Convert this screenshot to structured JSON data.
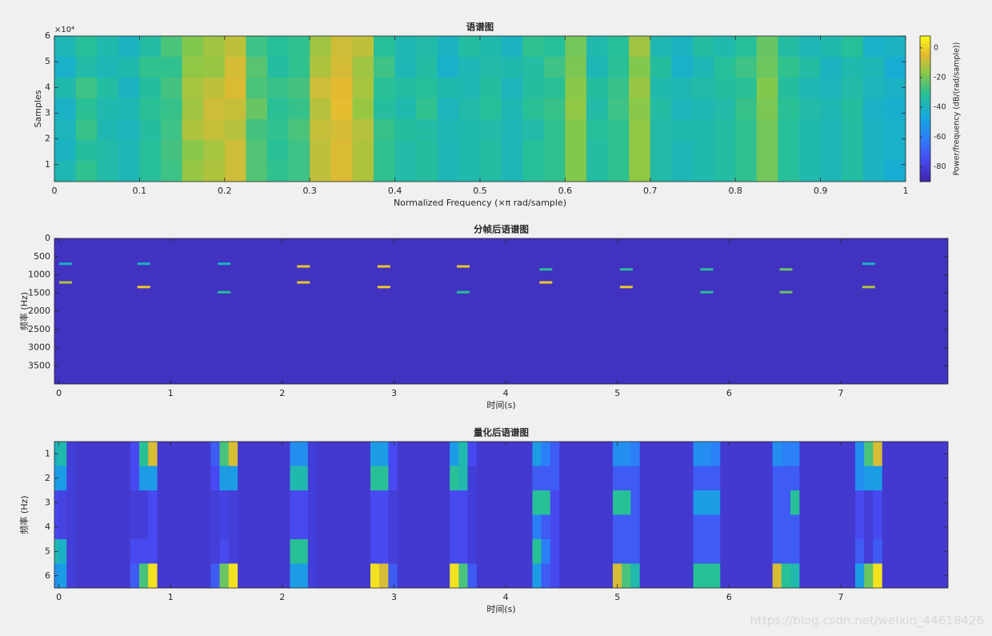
{
  "chart_data": [
    {
      "type": "heatmap",
      "title": "语谱图",
      "xlabel": "Normalized Frequency  (×π rad/sample)",
      "ylabel": "Samples",
      "xlim": [
        0,
        1
      ],
      "xticks": [
        0,
        0.1,
        0.2,
        0.3,
        0.4,
        0.5,
        0.6,
        0.7,
        0.8,
        0.9,
        1
      ],
      "ylim": [
        3400,
        60000
      ],
      "yticks": [
        {
          "value": 10000,
          "label": "1"
        },
        {
          "value": 20000,
          "label": "2"
        },
        {
          "value": 30000,
          "label": "3"
        },
        {
          "value": 40000,
          "label": "4"
        },
        {
          "value": 50000,
          "label": "5"
        },
        {
          "value": 60000,
          "label": "6"
        }
      ],
      "y_multiplier_label": "×10⁴",
      "colormap": "parula",
      "clim": [
        -90,
        8
      ],
      "colorbar": {
        "label": "Power/frequency (dB/(rad/sample))",
        "ticks": [
          0,
          -20,
          -40,
          -60,
          -80
        ]
      },
      "z": [
        [
          -38,
          -32,
          -36,
          -40,
          -34,
          -26,
          -18,
          -14,
          -10,
          -28,
          -32,
          -30,
          -14,
          -8,
          -10,
          -32,
          -37,
          -35,
          -40,
          -34,
          -36,
          -40,
          -30,
          -32,
          -20,
          -36,
          -32,
          -14,
          -37,
          -40,
          -34,
          -36,
          -32,
          -22,
          -34,
          -38,
          -36,
          -32,
          -42,
          -40
        ],
        [
          -42,
          -35,
          -38,
          -36,
          -30,
          -30,
          -16,
          -15,
          -7,
          -24,
          -34,
          -30,
          -12,
          -7,
          -14,
          -28,
          -38,
          -34,
          -42,
          -38,
          -35,
          -36,
          -34,
          -28,
          -19,
          -38,
          -31,
          -18,
          -33,
          -42,
          -38,
          -32,
          -28,
          -21,
          -30,
          -34,
          -40,
          -36,
          -38,
          -44
        ],
        [
          -36,
          -28,
          -34,
          -40,
          -33,
          -27,
          -13,
          -10,
          -6,
          -26,
          -29,
          -27,
          -8,
          -5,
          -13,
          -31,
          -34,
          -32,
          -36,
          -37,
          -33,
          -39,
          -33,
          -31,
          -17,
          -33,
          -29,
          -15,
          -36,
          -37,
          -35,
          -33,
          -31,
          -18,
          -33,
          -37,
          -39,
          -35,
          -39,
          -41
        ],
        [
          -41,
          -31,
          -36,
          -37,
          -31,
          -29,
          -14,
          -8,
          -9,
          -22,
          -31,
          -29,
          -11,
          -4,
          -15,
          -33,
          -36,
          -30,
          -39,
          -35,
          -32,
          -37,
          -31,
          -29,
          -16,
          -35,
          -28,
          -17,
          -34,
          -39,
          -37,
          -35,
          -29,
          -19,
          -31,
          -35,
          -37,
          -33,
          -41,
          -43
        ],
        [
          -39,
          -29,
          -37,
          -39,
          -33,
          -28,
          -12,
          -9,
          -11,
          -27,
          -30,
          -26,
          -9,
          -7,
          -11,
          -29,
          -33,
          -34,
          -37,
          -36,
          -35,
          -38,
          -35,
          -30,
          -18,
          -32,
          -30,
          -16,
          -35,
          -36,
          -36,
          -34,
          -30,
          -20,
          -32,
          -36,
          -38,
          -34,
          -40,
          -42
        ],
        [
          -40,
          -33,
          -35,
          -38,
          -32,
          -27,
          -17,
          -13,
          -8,
          -25,
          -31,
          -28,
          -10,
          -6,
          -12,
          -30,
          -35,
          -33,
          -38,
          -36,
          -34,
          -38,
          -32,
          -30,
          -18,
          -34,
          -30,
          -16,
          -35,
          -38,
          -36,
          -34,
          -30,
          -20,
          -32,
          -36,
          -38,
          -34,
          -40,
          -42
        ],
        [
          -37,
          -30,
          -35,
          -38,
          -32,
          -28,
          -15,
          -12,
          -8,
          -25,
          -30,
          -28,
          -10,
          -6,
          -12,
          -30,
          -35,
          -33,
          -38,
          -36,
          -34,
          -38,
          -32,
          -30,
          -18,
          -34,
          -30,
          -16,
          -35,
          -38,
          -36,
          -34,
          -30,
          -20,
          -32,
          -36,
          -38,
          -34,
          -40,
          -44
        ]
      ]
    },
    {
      "type": "segments",
      "title": "分帧后语谱图",
      "xlabel": "时间(s)",
      "ylabel": "频率 (Hz)",
      "xlim": [
        -0.04,
        7.96
      ],
      "xticks": [
        0,
        1,
        2,
        3,
        4,
        5,
        6,
        7
      ],
      "ylim": [
        0,
        4000
      ],
      "y_reversed": true,
      "yticks": [
        0,
        500,
        1000,
        1500,
        2000,
        2500,
        3000,
        3500
      ],
      "colormap": "parula",
      "clim": [
        0,
        1
      ],
      "background_value": 0.05,
      "tones": {
        "x": [
          0.06,
          0.06,
          0.76,
          0.76,
          1.48,
          1.48,
          2.19,
          2.19,
          2.91,
          2.91,
          3.62,
          3.62,
          4.36,
          4.36,
          5.08,
          5.08,
          5.8,
          5.8,
          6.51,
          6.51,
          7.25,
          7.25
        ],
        "y": [
          697,
          1209,
          697,
          1336,
          697,
          1477,
          770,
          1209,
          770,
          1336,
          770,
          1477,
          852,
          1209,
          852,
          1336,
          852,
          1477,
          852,
          1477,
          697,
          1336
        ],
        "values": [
          0.5,
          0.8,
          0.5,
          0.9,
          0.5,
          0.6,
          0.9,
          0.9,
          0.9,
          0.9,
          0.9,
          0.6,
          0.6,
          0.9,
          0.6,
          0.9,
          0.6,
          0.6,
          0.7,
          0.7,
          0.5,
          0.8
        ]
      }
    },
    {
      "type": "heatmap-columns",
      "title": "量化后语谱图",
      "xlabel": "时间(s)",
      "ylabel": "频率 (Hz)",
      "xlim": [
        -0.04,
        7.96
      ],
      "xticks": [
        0,
        1,
        2,
        3,
        4,
        5,
        6,
        7
      ],
      "ylim": [
        0.5,
        6.5
      ],
      "y_reversed": true,
      "yticks": [
        1,
        2,
        3,
        4,
        5,
        6
      ],
      "colormap": "parula",
      "clim": [
        0,
        1
      ],
      "background_value": 0.08,
      "x": [
        -0.05,
        0.03,
        0.11,
        0.68,
        0.76,
        0.84,
        1.4,
        1.48,
        1.56,
        2.11,
        2.19,
        2.27,
        2.83,
        2.91,
        2.99,
        3.54,
        3.62,
        3.7,
        4.28,
        4.36,
        4.44,
        5,
        5.08,
        5.16,
        5.72,
        5.8,
        5.88,
        6.43,
        6.51,
        6.59,
        7.17,
        7.25,
        7.33
      ],
      "z": [
        [
          0.5,
          0.55,
          0.1,
          0.15,
          0.6,
          0.85,
          0.2,
          0.65,
          0.85,
          0.35,
          0.35,
          0.1,
          0.4,
          0.4,
          0.15,
          0.4,
          0.55,
          0.15,
          0.4,
          0.3,
          0.2,
          0.35,
          0.35,
          0.3,
          0.35,
          0.35,
          0.3,
          0.35,
          0.3,
          0.3,
          0.35,
          0.65,
          0.85
        ],
        [
          0.4,
          0.4,
          0.1,
          0.15,
          0.4,
          0.4,
          0.15,
          0.4,
          0.4,
          0.55,
          0.55,
          0.1,
          0.6,
          0.6,
          0.15,
          0.6,
          0.55,
          0.1,
          0.2,
          0.2,
          0.2,
          0.2,
          0.2,
          0.2,
          0.2,
          0.2,
          0.2,
          0.2,
          0.2,
          0.2,
          0.35,
          0.4,
          0.4
        ],
        [
          0.15,
          0.12,
          0.1,
          0.1,
          0.1,
          0.15,
          0.1,
          0.12,
          0.1,
          0.15,
          0.15,
          0.1,
          0.15,
          0.15,
          0.1,
          0.15,
          0.15,
          0.1,
          0.6,
          0.6,
          0.15,
          0.6,
          0.6,
          0.2,
          0.4,
          0.4,
          0.4,
          0.2,
          0.2,
          0.6,
          0.15,
          0.1,
          0.15
        ],
        [
          0.15,
          0.12,
          0.1,
          0.1,
          0.1,
          0.15,
          0.1,
          0.12,
          0.1,
          0.15,
          0.15,
          0.1,
          0.15,
          0.15,
          0.1,
          0.15,
          0.15,
          0.1,
          0.3,
          0.2,
          0.15,
          0.2,
          0.2,
          0.2,
          0.2,
          0.2,
          0.2,
          0.2,
          0.2,
          0.2,
          0.15,
          0.1,
          0.15
        ],
        [
          0.55,
          0.5,
          0.1,
          0.15,
          0.15,
          0.15,
          0.1,
          0.15,
          0.1,
          0.6,
          0.6,
          0.1,
          0.15,
          0.15,
          0.1,
          0.15,
          0.15,
          0.1,
          0.6,
          0.3,
          0.15,
          0.2,
          0.2,
          0.2,
          0.2,
          0.2,
          0.2,
          0.2,
          0.2,
          0.2,
          0.2,
          0.1,
          0.2
        ],
        [
          0.35,
          0.4,
          0.1,
          0.2,
          0.65,
          0.95,
          0.2,
          0.7,
          0.95,
          0.4,
          0.4,
          0.1,
          0.95,
          0.85,
          0.2,
          0.95,
          0.65,
          0.2,
          0.4,
          0.2,
          0.15,
          0.85,
          0.65,
          0.55,
          0.6,
          0.6,
          0.6,
          0.85,
          0.6,
          0.55,
          0.4,
          0.7,
          0.95
        ]
      ]
    }
  ],
  "watermark": "https://blog.csdn.net/weixin_44618426"
}
